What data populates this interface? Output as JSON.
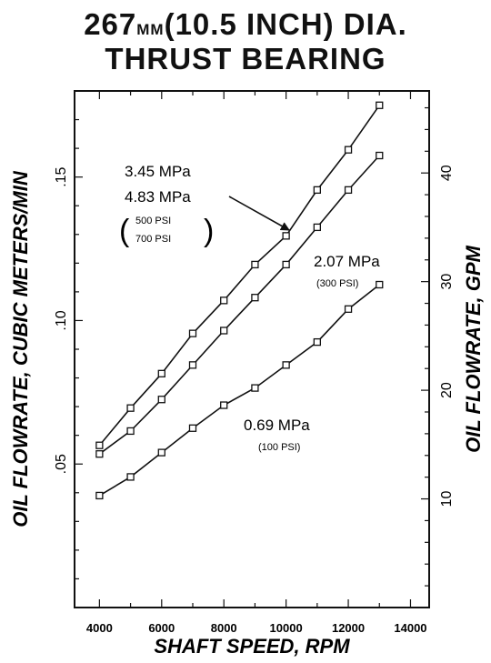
{
  "title": {
    "line1_prefix": "267",
    "line1_unit": "MM",
    "line1_suffix": "(10.5 INCH) DIA.",
    "line2": "THRUST BEARING"
  },
  "chart_data": {
    "type": "line",
    "xlabel": "SHAFT SPEED, RPM",
    "ylabel_left": "OIL FLOWRATE, CUBIC METERS/MIN",
    "ylabel_right": "OIL FLOWRATE, GPM",
    "xlim": [
      3200,
      14600
    ],
    "ylim_left": [
      0,
      0.18
    ],
    "x_ticks": [
      4000,
      6000,
      8000,
      10000,
      12000,
      14000
    ],
    "x_tick_labels": [
      "4000",
      "6000",
      "8000",
      "10000",
      "12000",
      "14000"
    ],
    "y_left_ticks": [
      0.05,
      0.1,
      0.15
    ],
    "y_left_tick_labels": [
      ".05",
      ".10",
      ".15"
    ],
    "y_right_ticks": [
      10,
      20,
      30,
      40
    ],
    "y_right_tick_labels": [
      "10",
      "20",
      "30",
      "40"
    ],
    "grid": false,
    "x": [
      4000,
      5000,
      6000,
      7000,
      8000,
      9000,
      10000,
      11000,
      12000,
      13000
    ],
    "series": [
      {
        "values": [
          0.0565,
          0.0695,
          0.0815,
          0.0955,
          0.107,
          0.1195,
          0.1295,
          0.1455,
          0.1595,
          0.175
        ]
      },
      {
        "values": [
          0.0535,
          0.0615,
          0.0725,
          0.0845,
          0.0965,
          0.108,
          0.1195,
          0.1325,
          0.1455,
          0.1575
        ]
      },
      {
        "values": [
          0.039,
          0.0455,
          0.054,
          0.0625,
          0.0705,
          0.0765,
          0.0845,
          0.0925,
          0.104,
          0.1125
        ]
      }
    ],
    "annotations": {
      "upper_a": "3.45 MPa",
      "upper_b": "4.83 MPa",
      "upper_psi_a": "500 PSI",
      "upper_psi_b": "700 PSI",
      "mid": "2.07 MPa",
      "mid_psi": "(300 PSI)",
      "low": "0.69 MPa",
      "low_psi": "(100 PSI)"
    }
  }
}
